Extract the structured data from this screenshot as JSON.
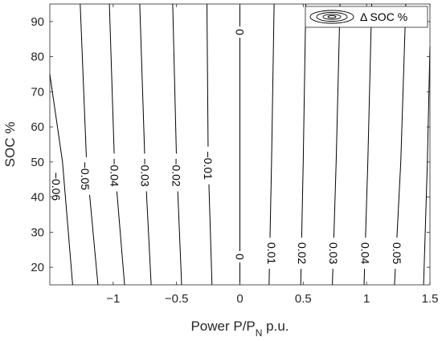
{
  "chart_data": {
    "type": "contour",
    "title": "",
    "xlabel": {
      "main": "Power P/P",
      "sub": "N",
      "suffix": " p.u."
    },
    "ylabel": "SOC %",
    "xlim": [
      -1.5,
      1.5
    ],
    "ylim": [
      15,
      95
    ],
    "xticks": [
      -1,
      -0.5,
      0,
      0.5,
      1,
      1.5
    ],
    "xtick_labels": [
      "−1",
      "−0.5",
      "0",
      "0.5",
      "1",
      "1.5"
    ],
    "yticks": [
      20,
      30,
      40,
      50,
      60,
      70,
      80,
      90
    ],
    "ytick_labels": [
      "20",
      "30",
      "40",
      "50",
      "60",
      "70",
      "80",
      "90"
    ],
    "legend": {
      "entry": "Δ SOC %",
      "position": "top-right"
    },
    "grid": false,
    "contours": [
      {
        "level": -0.06,
        "label": "−0.06",
        "points": [
          [
            -1.5,
            75
          ],
          [
            -1.4,
            50
          ],
          [
            -1.32,
            15
          ]
        ],
        "label_at": [
          -1.45,
          43
        ]
      },
      {
        "level": -0.05,
        "label": "−0.05",
        "points": [
          [
            -1.26,
            95
          ],
          [
            -1.21,
            50
          ],
          [
            -1.12,
            15
          ]
        ],
        "label_at": [
          -1.22,
          46
        ]
      },
      {
        "level": -0.04,
        "label": "−0.04",
        "points": [
          [
            -1.03,
            95
          ],
          [
            -0.99,
            50
          ],
          [
            -0.91,
            15
          ]
        ],
        "label_at": [
          -0.99,
          47
        ]
      },
      {
        "level": -0.03,
        "label": "−0.03",
        "points": [
          [
            -0.79,
            95
          ],
          [
            -0.75,
            50
          ],
          [
            -0.7,
            15
          ]
        ],
        "label_at": [
          -0.75,
          47
        ]
      },
      {
        "level": -0.02,
        "label": "−0.02",
        "points": [
          [
            -0.53,
            95
          ],
          [
            -0.5,
            50
          ],
          [
            -0.46,
            15
          ]
        ],
        "label_at": [
          -0.5,
          47
        ]
      },
      {
        "level": -0.01,
        "label": "−0.01",
        "points": [
          [
            -0.26,
            95
          ],
          [
            -0.25,
            50
          ],
          [
            -0.22,
            15
          ]
        ],
        "label_at": [
          -0.25,
          49
        ]
      },
      {
        "level": 0,
        "label": "0",
        "points": [
          [
            0,
            95
          ],
          [
            0,
            15
          ]
        ],
        "label_at": [
          0,
          87
        ]
      },
      {
        "level": 0,
        "label": "0",
        "points": [],
        "label_at": [
          0,
          23
        ]
      },
      {
        "level": 0.01,
        "label": "0.01",
        "points": [
          [
            0.27,
            95
          ],
          [
            0.25,
            50
          ],
          [
            0.23,
            15
          ]
        ],
        "label_at": [
          0.25,
          24
        ]
      },
      {
        "level": 0.02,
        "label": "0.02",
        "points": [
          [
            0.52,
            95
          ],
          [
            0.5,
            50
          ],
          [
            0.48,
            15
          ]
        ],
        "label_at": [
          0.49,
          24
        ]
      },
      {
        "level": 0.03,
        "label": "0.03",
        "points": [
          [
            0.79,
            95
          ],
          [
            0.76,
            50
          ],
          [
            0.73,
            15
          ]
        ],
        "label_at": [
          0.74,
          24
        ]
      },
      {
        "level": 0.04,
        "label": "0.04",
        "points": [
          [
            1.04,
            95
          ],
          [
            1.01,
            50
          ],
          [
            0.98,
            15
          ]
        ],
        "label_at": [
          0.99,
          24
        ]
      },
      {
        "level": 0.05,
        "label": "0.05",
        "points": [
          [
            1.31,
            95
          ],
          [
            1.27,
            50
          ],
          [
            1.22,
            15
          ]
        ],
        "label_at": [
          1.24,
          24
        ]
      },
      {
        "level": 0.06,
        "label": "",
        "points": [
          [
            1.5,
            83
          ],
          [
            1.48,
            50
          ],
          [
            1.45,
            15
          ]
        ],
        "label_at": null
      }
    ]
  }
}
